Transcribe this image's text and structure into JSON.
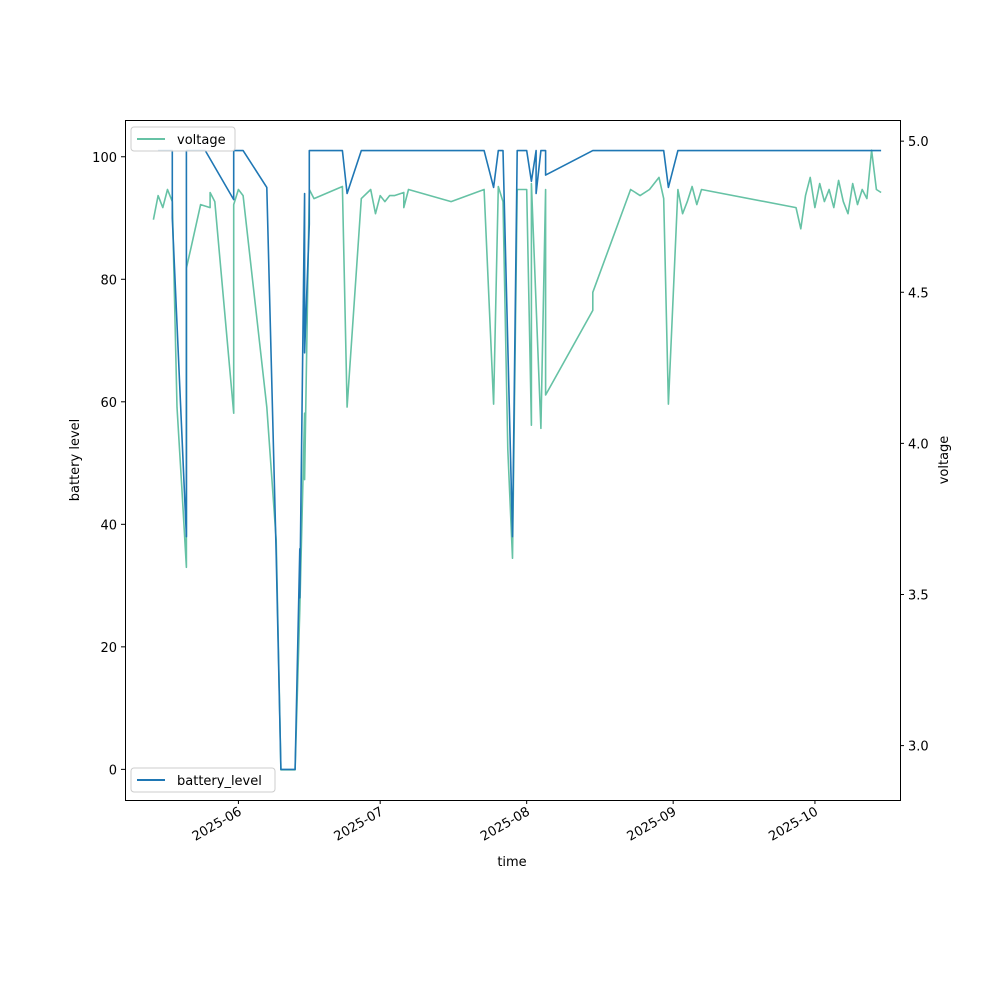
{
  "chart_data": {
    "type": "line",
    "xlabel": "time",
    "ylabel_left": "battery level",
    "ylabel_right": "voltage",
    "xlim": [
      "2025-05-08",
      "2025-10-19"
    ],
    "ylim_left": [
      -5,
      106
    ],
    "ylim_right": [
      2.82,
      5.07
    ],
    "x_ticks": [
      "2025-06",
      "2025-07",
      "2025-08",
      "2025-09",
      "2025-10"
    ],
    "y_ticks_left": [
      0,
      20,
      40,
      60,
      80,
      100
    ],
    "y_ticks_right": [
      3.0,
      3.5,
      4.0,
      4.5,
      5.0
    ],
    "y_tick_labels_right": [
      "3.0",
      "3.5",
      "4.0",
      "4.5",
      "5.0"
    ],
    "grid": false,
    "series": [
      {
        "name": "battery_level",
        "axis": "left",
        "color": "#1f77b4",
        "legend_position": "lower-left",
        "points": [
          [
            "2025-05-15",
            101
          ],
          [
            "2025-05-18",
            101
          ],
          [
            "2025-05-18",
            90
          ],
          [
            "2025-05-21",
            38
          ],
          [
            "2025-05-21",
            101
          ],
          [
            "2025-05-25",
            101
          ],
          [
            "2025-05-31",
            93
          ],
          [
            "2025-05-31",
            101
          ],
          [
            "2025-06-02",
            101
          ],
          [
            "2025-06-07",
            95
          ],
          [
            "2025-06-09",
            35
          ],
          [
            "2025-06-10",
            0
          ],
          [
            "2025-06-12",
            0
          ],
          [
            "2025-06-13",
            0
          ],
          [
            "2025-06-14",
            36
          ],
          [
            "2025-06-14",
            28
          ],
          [
            "2025-06-15",
            94
          ],
          [
            "2025-06-15",
            68
          ],
          [
            "2025-06-16",
            89
          ],
          [
            "2025-06-16",
            101
          ],
          [
            "2025-06-23",
            101
          ],
          [
            "2025-06-24",
            94
          ],
          [
            "2025-06-27",
            101
          ],
          [
            "2025-07-23",
            101
          ],
          [
            "2025-07-25",
            95
          ],
          [
            "2025-07-26",
            101
          ],
          [
            "2025-07-27",
            101
          ],
          [
            "2025-07-29",
            38
          ],
          [
            "2025-07-30",
            101
          ],
          [
            "2025-08-01",
            101
          ],
          [
            "2025-08-02",
            96
          ],
          [
            "2025-08-03",
            101
          ],
          [
            "2025-08-03",
            94
          ],
          [
            "2025-08-04",
            101
          ],
          [
            "2025-08-05",
            101
          ],
          [
            "2025-08-05",
            97
          ],
          [
            "2025-08-15",
            101
          ],
          [
            "2025-08-28",
            101
          ],
          [
            "2025-08-30",
            101
          ],
          [
            "2025-08-31",
            95
          ],
          [
            "2025-09-02",
            101
          ],
          [
            "2025-10-15",
            101
          ]
        ]
      },
      {
        "name": "voltage",
        "axis": "right",
        "color": "#66c2a5",
        "legend_position": "upper-left",
        "points": [
          [
            "2025-05-14",
            4.74
          ],
          [
            "2025-05-15",
            4.82
          ],
          [
            "2025-05-16",
            4.78
          ],
          [
            "2025-05-17",
            4.84
          ],
          [
            "2025-05-18",
            4.8
          ],
          [
            "2025-05-19",
            4.12
          ],
          [
            "2025-05-20",
            3.86
          ],
          [
            "2025-05-21",
            3.59
          ],
          [
            "2025-05-21",
            4.58
          ],
          [
            "2025-05-22",
            4.65
          ],
          [
            "2025-05-24",
            4.79
          ],
          [
            "2025-05-26",
            4.78
          ],
          [
            "2025-05-26",
            4.83
          ],
          [
            "2025-05-27",
            4.8
          ],
          [
            "2025-05-31",
            4.1
          ],
          [
            "2025-05-31",
            4.79
          ],
          [
            "2025-06-01",
            4.84
          ],
          [
            "2025-06-02",
            4.82
          ],
          [
            "2025-06-07",
            4.12
          ],
          [
            "2025-06-09",
            3.68
          ],
          [
            "2025-06-10",
            2.92
          ],
          [
            "2025-06-13",
            2.92
          ],
          [
            "2025-06-14",
            3.45
          ],
          [
            "2025-06-15",
            4.1
          ],
          [
            "2025-06-15",
            3.88
          ],
          [
            "2025-06-16",
            4.84
          ],
          [
            "2025-06-17",
            4.81
          ],
          [
            "2025-06-23",
            4.85
          ],
          [
            "2025-06-24",
            4.12
          ],
          [
            "2025-06-27",
            4.81
          ],
          [
            "2025-06-29",
            4.84
          ],
          [
            "2025-06-30",
            4.76
          ],
          [
            "2025-07-01",
            4.82
          ],
          [
            "2025-07-02",
            4.8
          ],
          [
            "2025-07-03",
            4.82
          ],
          [
            "2025-07-04",
            4.82
          ],
          [
            "2025-07-06",
            4.83
          ],
          [
            "2025-07-06",
            4.78
          ],
          [
            "2025-07-07",
            4.84
          ],
          [
            "2025-07-16",
            4.8
          ],
          [
            "2025-07-23",
            4.84
          ],
          [
            "2025-07-25",
            4.13
          ],
          [
            "2025-07-26",
            4.85
          ],
          [
            "2025-07-27",
            4.8
          ],
          [
            "2025-07-28",
            3.98
          ],
          [
            "2025-07-29",
            3.62
          ],
          [
            "2025-07-30",
            4.84
          ],
          [
            "2025-08-01",
            4.84
          ],
          [
            "2025-08-02",
            4.06
          ],
          [
            "2025-08-02",
            4.86
          ],
          [
            "2025-08-04",
            4.05
          ],
          [
            "2025-08-05",
            4.84
          ],
          [
            "2025-08-05",
            4.16
          ],
          [
            "2025-08-15",
            4.44
          ],
          [
            "2025-08-15",
            4.5
          ],
          [
            "2025-08-23",
            4.84
          ],
          [
            "2025-08-24",
            4.83
          ],
          [
            "2025-08-25",
            4.82
          ],
          [
            "2025-08-27",
            4.84
          ],
          [
            "2025-08-29",
            4.88
          ],
          [
            "2025-08-30",
            4.81
          ],
          [
            "2025-08-31",
            4.13
          ],
          [
            "2025-09-02",
            4.84
          ],
          [
            "2025-09-03",
            4.76
          ],
          [
            "2025-09-04",
            4.8
          ],
          [
            "2025-09-05",
            4.85
          ],
          [
            "2025-09-06",
            4.79
          ],
          [
            "2025-09-07",
            4.84
          ],
          [
            "2025-09-27",
            4.78
          ],
          [
            "2025-09-28",
            4.71
          ],
          [
            "2025-09-29",
            4.82
          ],
          [
            "2025-09-30",
            4.88
          ],
          [
            "2025-10-01",
            4.78
          ],
          [
            "2025-10-02",
            4.86
          ],
          [
            "2025-10-03",
            4.8
          ],
          [
            "2025-10-04",
            4.84
          ],
          [
            "2025-10-05",
            4.78
          ],
          [
            "2025-10-06",
            4.87
          ],
          [
            "2025-10-07",
            4.8
          ],
          [
            "2025-10-08",
            4.76
          ],
          [
            "2025-10-09",
            4.86
          ],
          [
            "2025-10-10",
            4.79
          ],
          [
            "2025-10-11",
            4.84
          ],
          [
            "2025-10-12",
            4.81
          ],
          [
            "2025-10-13",
            4.97
          ],
          [
            "2025-10-14",
            4.84
          ],
          [
            "2025-10-15",
            4.83
          ]
        ]
      }
    ]
  }
}
